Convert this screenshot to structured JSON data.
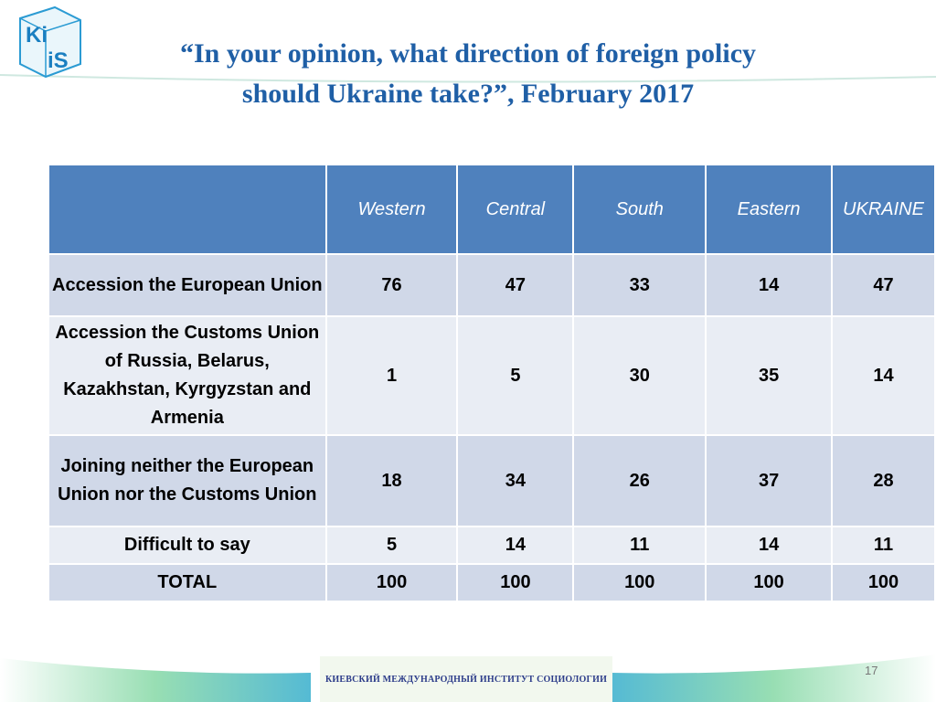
{
  "logo": [
    "Ki",
    "iS"
  ],
  "header": {
    "title_line1": "“In your opinion, what direction of foreign policy",
    "title_line2": "should Ukraine take?”,  February 2017"
  },
  "table": {
    "columns": [
      "Western",
      "Central",
      "South",
      "Eastern",
      "UKRAINE"
    ],
    "rows": [
      {
        "label": "Accession the European Union",
        "values": [
          76,
          47,
          33,
          14,
          47
        ]
      },
      {
        "label": "Accession the Customs Union of Russia, Belarus, Kazakhstan, Kyrgyzstan and Armenia",
        "values": [
          1,
          5,
          30,
          35,
          14
        ]
      },
      {
        "label": "Joining neither the European Union nor the Customs Union",
        "values": [
          18,
          34,
          26,
          37,
          28
        ]
      },
      {
        "label": "Difficult to say",
        "values": [
          5,
          14,
          11,
          14,
          11
        ]
      },
      {
        "label": "TOTAL",
        "values": [
          100,
          100,
          100,
          100,
          100
        ]
      }
    ]
  },
  "footer": {
    "institute": "КИЕВСКИЙ МЕЖДУНАРОДНЫЙ ИНСТИТУТ СОЦИОЛОГИИ",
    "page_number": "17"
  }
}
